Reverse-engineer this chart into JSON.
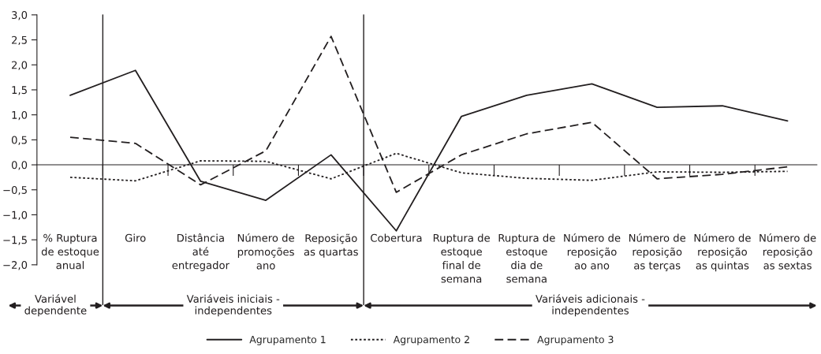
{
  "chart_data": {
    "type": "line",
    "categories": [
      "% Ruptura\nde estoque\nanual",
      "Giro",
      "Distância\naté\nentregador",
      "Número de\npromoções\nano",
      "Reposição\nas quartas",
      "Cobertura",
      "Ruptura de\nestoque\nfinal de\nsemana",
      "Ruptura de\nestoque\ndia de\nsemana",
      "Número de\nreposição\nao ano",
      "Número de\nreposição\nas terças",
      "Número de\nreposição\nas quintas",
      "Número de\nreposição\nas sextas"
    ],
    "series": [
      {
        "name": "Agrupamento 1",
        "color": "#231f20",
        "line_style": "solid",
        "values": [
          1.39,
          1.89,
          -0.33,
          -0.71,
          0.2,
          -1.32,
          0.97,
          1.39,
          1.62,
          1.15,
          1.18,
          0.88
        ]
      },
      {
        "name": "Agrupamento 2",
        "color": "#231f20",
        "line_style": "dotted",
        "values": [
          -0.25,
          -0.32,
          0.08,
          0.07,
          -0.28,
          0.23,
          -0.16,
          -0.27,
          -0.31,
          -0.14,
          -0.15,
          -0.13
        ]
      },
      {
        "name": "Agrupamento 3",
        "color": "#231f20",
        "line_style": "dashed",
        "values": [
          0.55,
          0.43,
          -0.4,
          0.28,
          2.57,
          -0.55,
          0.2,
          0.62,
          0.85,
          -0.28,
          -0.19,
          -0.04
        ]
      }
    ],
    "ylim": [
      -2.0,
      3.0
    ],
    "yticks": [
      {
        "value": -2.0,
        "label": "−2,0"
      },
      {
        "value": -1.5,
        "label": "−1,5"
      },
      {
        "value": -1.0,
        "label": "−1,0"
      },
      {
        "value": -0.5,
        "label": "−0,5"
      },
      {
        "value": 0.0,
        "label": "0,0"
      },
      {
        "value": 0.5,
        "label": "0,5"
      },
      {
        "value": 1.0,
        "label": "1,0"
      },
      {
        "value": 1.5,
        "label": "1,5"
      },
      {
        "value": 2.0,
        "label": "2,0"
      },
      {
        "value": 2.5,
        "label": "2,5"
      },
      {
        "value": 3.0,
        "label": "3,0"
      }
    ],
    "annotations": [
      "Variável\ndependente",
      "Variáveis iniciais -\nindependentes",
      "Variáveis adicionais -\nindependentes"
    ],
    "grid": false,
    "legend": "bottom"
  }
}
